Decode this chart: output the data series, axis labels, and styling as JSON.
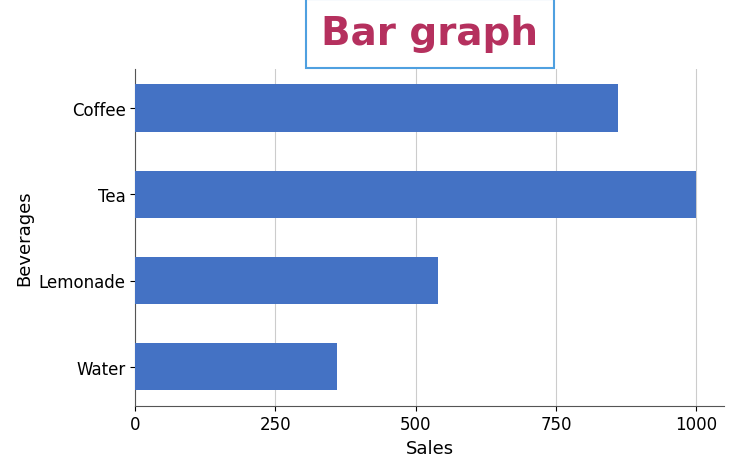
{
  "title": "Bar graph",
  "title_color": "#b5305e",
  "title_fontsize": 28,
  "title_font": "Comic Sans MS",
  "categories": [
    "Coffee",
    "Tea",
    "Lemonade",
    "Water"
  ],
  "values": [
    860,
    1000,
    540,
    360
  ],
  "bar_color": "#4472C4",
  "xlabel": "Sales",
  "ylabel": "Beverages",
  "xlabel_fontsize": 13,
  "ylabel_fontsize": 13,
  "tick_fontsize": 12,
  "xlim": [
    0,
    1050
  ],
  "xticks": [
    0,
    250,
    500,
    750,
    1000
  ],
  "background_color": "#ffffff",
  "chart_bg": "#ffffff",
  "grid_color": "#cccccc",
  "title_box_color": "#4fa0e0",
  "figsize": [
    18.48,
    7.88
  ]
}
